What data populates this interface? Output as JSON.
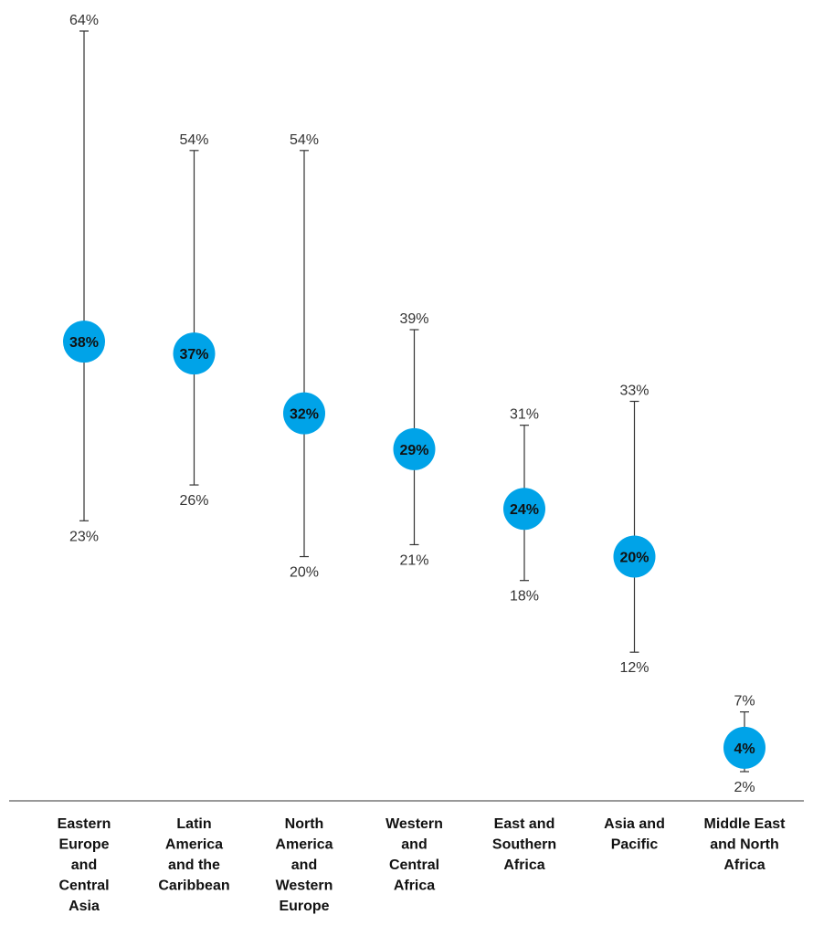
{
  "chart_data": {
    "type": "scatter",
    "title": "",
    "xlabel": "",
    "ylabel": "",
    "ylim": [
      0,
      66
    ],
    "grid": false,
    "legend": "none",
    "marker_color": "#00a3e8",
    "value_suffix": "%",
    "categories": [
      "Eastern Europe and Central Asia",
      "Latin America and the Caribbean",
      "North America and Western Europe",
      "Western and Central Africa",
      "East and Southern Africa",
      "Asia and Pacific",
      "Middle East and North Africa"
    ],
    "category_lines": [
      [
        "Eastern",
        "Europe",
        "and",
        "Central",
        "Asia"
      ],
      [
        "Latin",
        "America",
        "and the",
        "Caribbean"
      ],
      [
        "North",
        "America",
        "and",
        "Western",
        "Europe"
      ],
      [
        "Western",
        "and",
        "Central",
        "Africa"
      ],
      [
        "East and",
        "Southern",
        "Africa"
      ],
      [
        "Asia and",
        "Pacific"
      ],
      [
        "Middle East",
        "and North",
        "Africa"
      ]
    ],
    "values": [
      38,
      37,
      32,
      29,
      24,
      20,
      4
    ],
    "upper": [
      64,
      54,
      54,
      39,
      31,
      33,
      7
    ],
    "lower": [
      23,
      26,
      20,
      21,
      18,
      12,
      2
    ]
  }
}
